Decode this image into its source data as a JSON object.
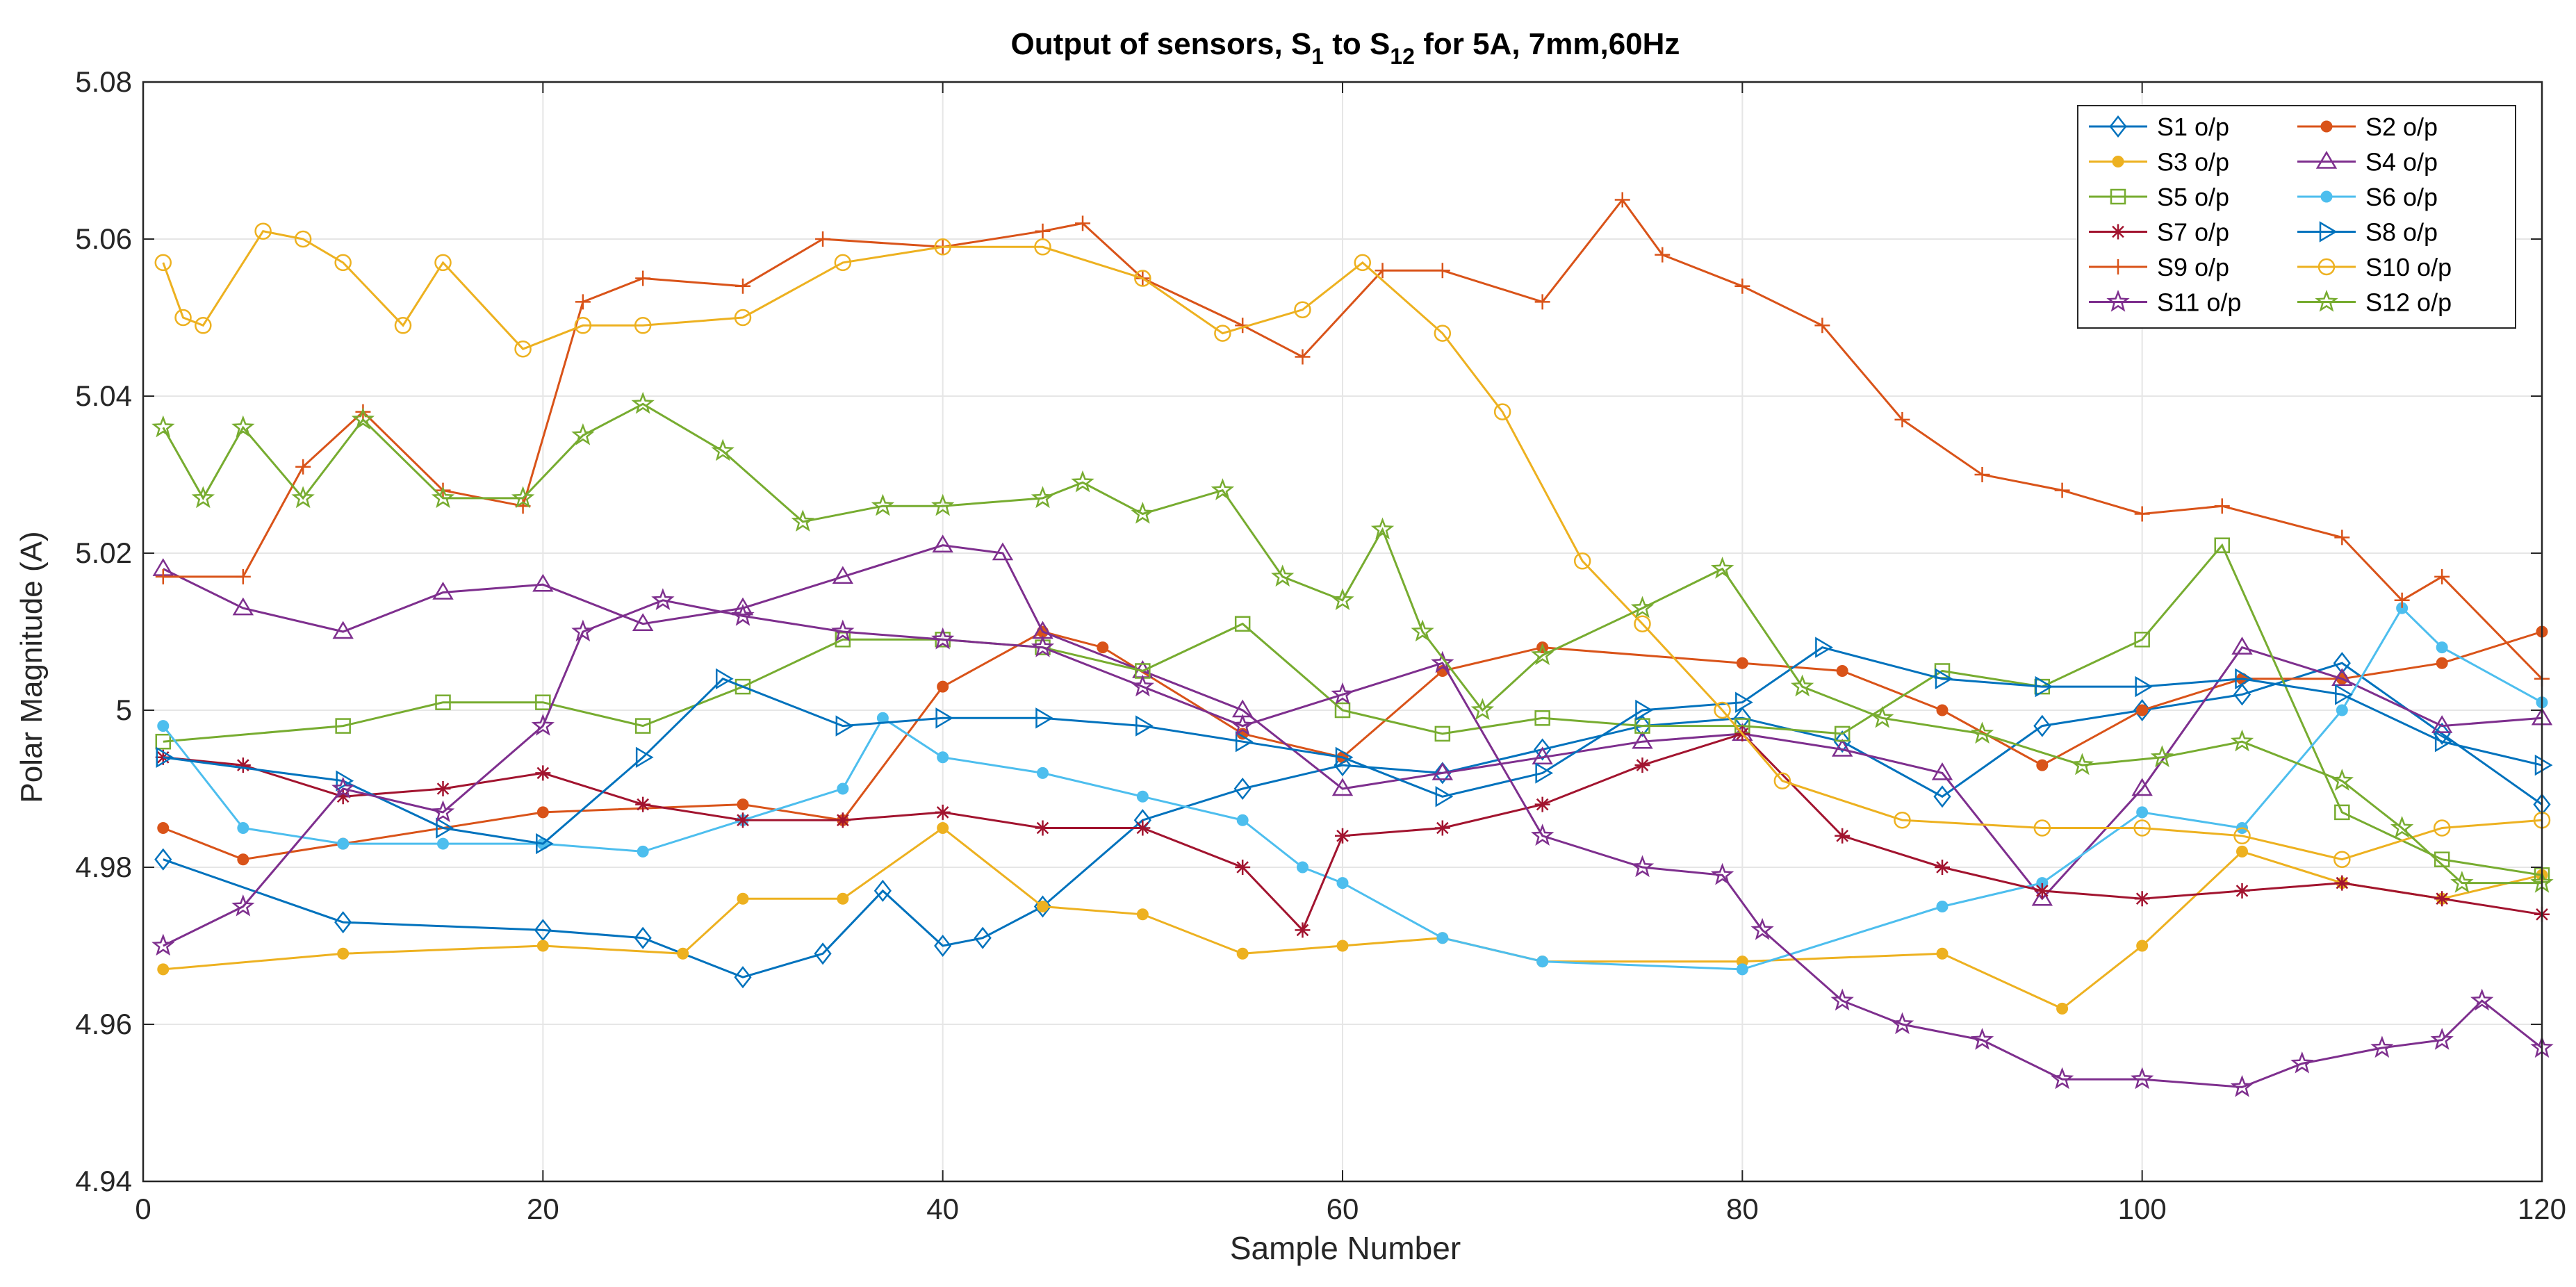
{
  "chart_data": {
    "type": "line",
    "title": "Output of sensors, S",
    "title_parts": {
      "prefix": "Output of sensors, S",
      "sub1": "1",
      "mid": " to S",
      "sub2": "12",
      "suffix": " for 5A, 7mm,60Hz"
    },
    "xlabel": "Sample Number",
    "ylabel": "Polar Magnitude (A)",
    "xlim": [
      0,
      120
    ],
    "ylim": [
      4.94,
      5.08
    ],
    "xticks": [
      0,
      20,
      40,
      60,
      80,
      100,
      120
    ],
    "yticks": [
      4.94,
      4.96,
      4.98,
      5.0,
      5.02,
      5.04,
      5.06,
      5.08
    ],
    "ytick_labels": [
      "4.94",
      "4.96",
      "4.98",
      "5",
      "5.02",
      "5.04",
      "5.06",
      "5.08"
    ],
    "grid": true,
    "legend_position": "top-right",
    "series": [
      {
        "name": "S1 o/p",
        "color": "#0072BD",
        "marker": "diamond",
        "x": [
          1,
          10,
          20,
          25,
          30,
          34,
          37,
          40,
          42,
          45,
          50,
          55,
          60,
          65,
          70,
          75,
          80,
          85,
          90,
          95,
          100,
          105,
          110,
          115,
          120
        ],
        "y": [
          4.981,
          4.973,
          4.972,
          4.971,
          4.966,
          4.969,
          4.977,
          4.97,
          4.971,
          4.975,
          4.986,
          4.99,
          4.993,
          4.992,
          4.995,
          4.998,
          4.999,
          4.996,
          4.989,
          4.998,
          5.0,
          5.002,
          5.006,
          4.997,
          4.988
        ]
      },
      {
        "name": "S2 o/p",
        "color": "#D95319",
        "marker": "dot",
        "x": [
          1,
          5,
          10,
          20,
          30,
          35,
          40,
          45,
          48,
          55,
          60,
          65,
          70,
          80,
          85,
          90,
          95,
          100,
          105,
          110,
          115,
          120
        ],
        "y": [
          4.985,
          4.981,
          4.983,
          4.987,
          4.988,
          4.986,
          5.003,
          5.01,
          5.008,
          4.997,
          4.994,
          5.005,
          5.008,
          5.006,
          5.005,
          5.0,
          4.993,
          5.0,
          5.004,
          5.004,
          5.006,
          5.01
        ]
      },
      {
        "name": "S3 o/p",
        "color": "#EDB120",
        "marker": "dot",
        "x": [
          1,
          10,
          20,
          27,
          30,
          35,
          40,
          45,
          50,
          55,
          60,
          65,
          70,
          80,
          90,
          96,
          100,
          105,
          110,
          115,
          120
        ],
        "y": [
          4.967,
          4.969,
          4.97,
          4.969,
          4.976,
          4.976,
          4.985,
          4.975,
          4.974,
          4.969,
          4.97,
          4.971,
          4.968,
          4.968,
          4.969,
          4.962,
          4.97,
          4.982,
          4.978,
          4.976,
          4.979
        ]
      },
      {
        "name": "S4 o/p",
        "color": "#7E2F8E",
        "marker": "triangle-up",
        "x": [
          1,
          5,
          10,
          15,
          20,
          25,
          30,
          35,
          40,
          43,
          45,
          50,
          55,
          60,
          65,
          70,
          75,
          80,
          85,
          90,
          95,
          100,
          105,
          110,
          115,
          120
        ],
        "y": [
          5.018,
          5.013,
          5.01,
          5.015,
          5.016,
          5.011,
          5.013,
          5.017,
          5.021,
          5.02,
          5.01,
          5.005,
          5.0,
          4.99,
          4.992,
          4.994,
          4.996,
          4.997,
          4.995,
          4.992,
          4.976,
          4.99,
          5.008,
          5.004,
          4.998,
          4.999
        ]
      },
      {
        "name": "S5 o/p",
        "color": "#77AC30",
        "marker": "square",
        "x": [
          1,
          10,
          15,
          20,
          25,
          30,
          35,
          40,
          45,
          50,
          55,
          60,
          65,
          70,
          75,
          80,
          85,
          90,
          95,
          100,
          104,
          110,
          115,
          120
        ],
        "y": [
          4.996,
          4.998,
          5.001,
          5.001,
          4.998,
          5.003,
          5.009,
          5.009,
          5.008,
          5.005,
          5.011,
          5.0,
          4.997,
          4.999,
          4.998,
          4.998,
          4.997,
          5.005,
          5.003,
          5.009,
          5.021,
          4.987,
          4.981,
          4.979
        ]
      },
      {
        "name": "S6 o/p",
        "color": "#4DBEEE",
        "marker": "dot",
        "x": [
          1,
          5,
          10,
          15,
          20,
          25,
          30,
          35,
          37,
          40,
          45,
          50,
          55,
          58,
          60,
          65,
          70,
          80,
          90,
          95,
          100,
          105,
          110,
          113,
          115,
          120
        ],
        "y": [
          4.998,
          4.985,
          4.983,
          4.983,
          4.983,
          4.982,
          4.986,
          4.99,
          4.999,
          4.994,
          4.992,
          4.989,
          4.986,
          4.98,
          4.978,
          4.971,
          4.968,
          4.967,
          4.975,
          4.978,
          4.987,
          4.985,
          5.0,
          5.013,
          5.008,
          5.001
        ]
      },
      {
        "name": "S7 o/p",
        "color": "#A2142F",
        "marker": "asterisk",
        "x": [
          1,
          5,
          10,
          15,
          20,
          25,
          30,
          35,
          40,
          45,
          50,
          55,
          58,
          60,
          65,
          70,
          75,
          80,
          85,
          90,
          95,
          100,
          105,
          110,
          115,
          120
        ],
        "y": [
          4.994,
          4.993,
          4.989,
          4.99,
          4.992,
          4.988,
          4.986,
          4.986,
          4.987,
          4.985,
          4.985,
          4.98,
          4.972,
          4.984,
          4.985,
          4.988,
          4.993,
          4.997,
          4.984,
          4.98,
          4.977,
          4.976,
          4.977,
          4.978,
          4.976,
          4.974
        ]
      },
      {
        "name": "S8 o/p",
        "color": "#0072BD",
        "marker": "triangle-right",
        "x": [
          1,
          10,
          15,
          20,
          25,
          29,
          35,
          40,
          45,
          50,
          55,
          60,
          65,
          70,
          75,
          80,
          84,
          90,
          95,
          100,
          105,
          110,
          115,
          120
        ],
        "y": [
          4.994,
          4.991,
          4.985,
          4.983,
          4.994,
          5.004,
          4.998,
          4.999,
          4.999,
          4.998,
          4.996,
          4.994,
          4.989,
          4.992,
          5.0,
          5.001,
          5.008,
          5.004,
          5.003,
          5.003,
          5.004,
          5.002,
          4.996,
          4.993
        ]
      },
      {
        "name": "S9 o/p",
        "color": "#D95319",
        "marker": "plus",
        "x": [
          1,
          5,
          8,
          11,
          15,
          19,
          22,
          25,
          30,
          34,
          40,
          45,
          47,
          50,
          55,
          58,
          62,
          65,
          70,
          74,
          76,
          80,
          84,
          88,
          92,
          96,
          100,
          104,
          110,
          113,
          115,
          120
        ],
        "y": [
          5.017,
          5.017,
          5.031,
          5.038,
          5.028,
          5.026,
          5.052,
          5.055,
          5.054,
          5.06,
          5.059,
          5.061,
          5.062,
          5.055,
          5.049,
          5.045,
          5.056,
          5.056,
          5.052,
          5.065,
          5.058,
          5.054,
          5.049,
          5.037,
          5.03,
          5.028,
          5.025,
          5.026,
          5.022,
          5.014,
          5.017,
          5.004
        ]
      },
      {
        "name": "S10 o/p",
        "color": "#EDB120",
        "marker": "circle",
        "x": [
          1,
          2,
          3,
          6,
          8,
          10,
          13,
          15,
          19,
          22,
          25,
          30,
          35,
          40,
          45,
          50,
          54,
          58,
          61,
          65,
          68,
          72,
          75,
          79,
          82,
          88,
          95,
          100,
          105,
          110,
          115,
          120
        ],
        "y": [
          5.057,
          5.05,
          5.049,
          5.061,
          5.06,
          5.057,
          5.049,
          5.057,
          5.046,
          5.049,
          5.049,
          5.05,
          5.057,
          5.059,
          5.059,
          5.055,
          5.048,
          5.051,
          5.057,
          5.048,
          5.038,
          5.019,
          5.011,
          5.0,
          4.991,
          4.986,
          4.985,
          4.985,
          4.984,
          4.981,
          4.985,
          4.986
        ]
      },
      {
        "name": "S11 o/p",
        "color": "#7E2F8E",
        "marker": "star",
        "x": [
          1,
          5,
          10,
          15,
          20,
          22,
          26,
          30,
          35,
          40,
          45,
          50,
          55,
          60,
          65,
          70,
          75,
          79,
          81,
          85,
          88,
          92,
          96,
          100,
          105,
          108,
          112,
          115,
          117,
          120
        ],
        "y": [
          4.97,
          4.975,
          4.99,
          4.987,
          4.998,
          5.01,
          5.014,
          5.012,
          5.01,
          5.009,
          5.008,
          5.003,
          4.998,
          5.002,
          5.006,
          4.984,
          4.98,
          4.979,
          4.972,
          4.963,
          4.96,
          4.958,
          4.953,
          4.953,
          4.952,
          4.955,
          4.957,
          4.958,
          4.963,
          4.957
        ]
      },
      {
        "name": "S12 o/p",
        "color": "#77AC30",
        "marker": "star",
        "x": [
          1,
          3,
          5,
          8,
          11,
          15,
          19,
          22,
          25,
          29,
          33,
          37,
          40,
          45,
          47,
          50,
          54,
          57,
          60,
          62,
          64,
          67,
          70,
          75,
          79,
          83,
          87,
          92,
          97,
          101,
          105,
          110,
          113,
          116,
          120
        ],
        "y": [
          5.036,
          5.027,
          5.036,
          5.027,
          5.037,
          5.027,
          5.027,
          5.035,
          5.039,
          5.033,
          5.024,
          5.026,
          5.026,
          5.027,
          5.029,
          5.025,
          5.028,
          5.017,
          5.014,
          5.023,
          5.01,
          5.0,
          5.007,
          5.013,
          5.018,
          5.003,
          4.999,
          4.997,
          4.993,
          4.994,
          4.996,
          4.991,
          4.985,
          4.978,
          4.978
        ]
      }
    ]
  }
}
